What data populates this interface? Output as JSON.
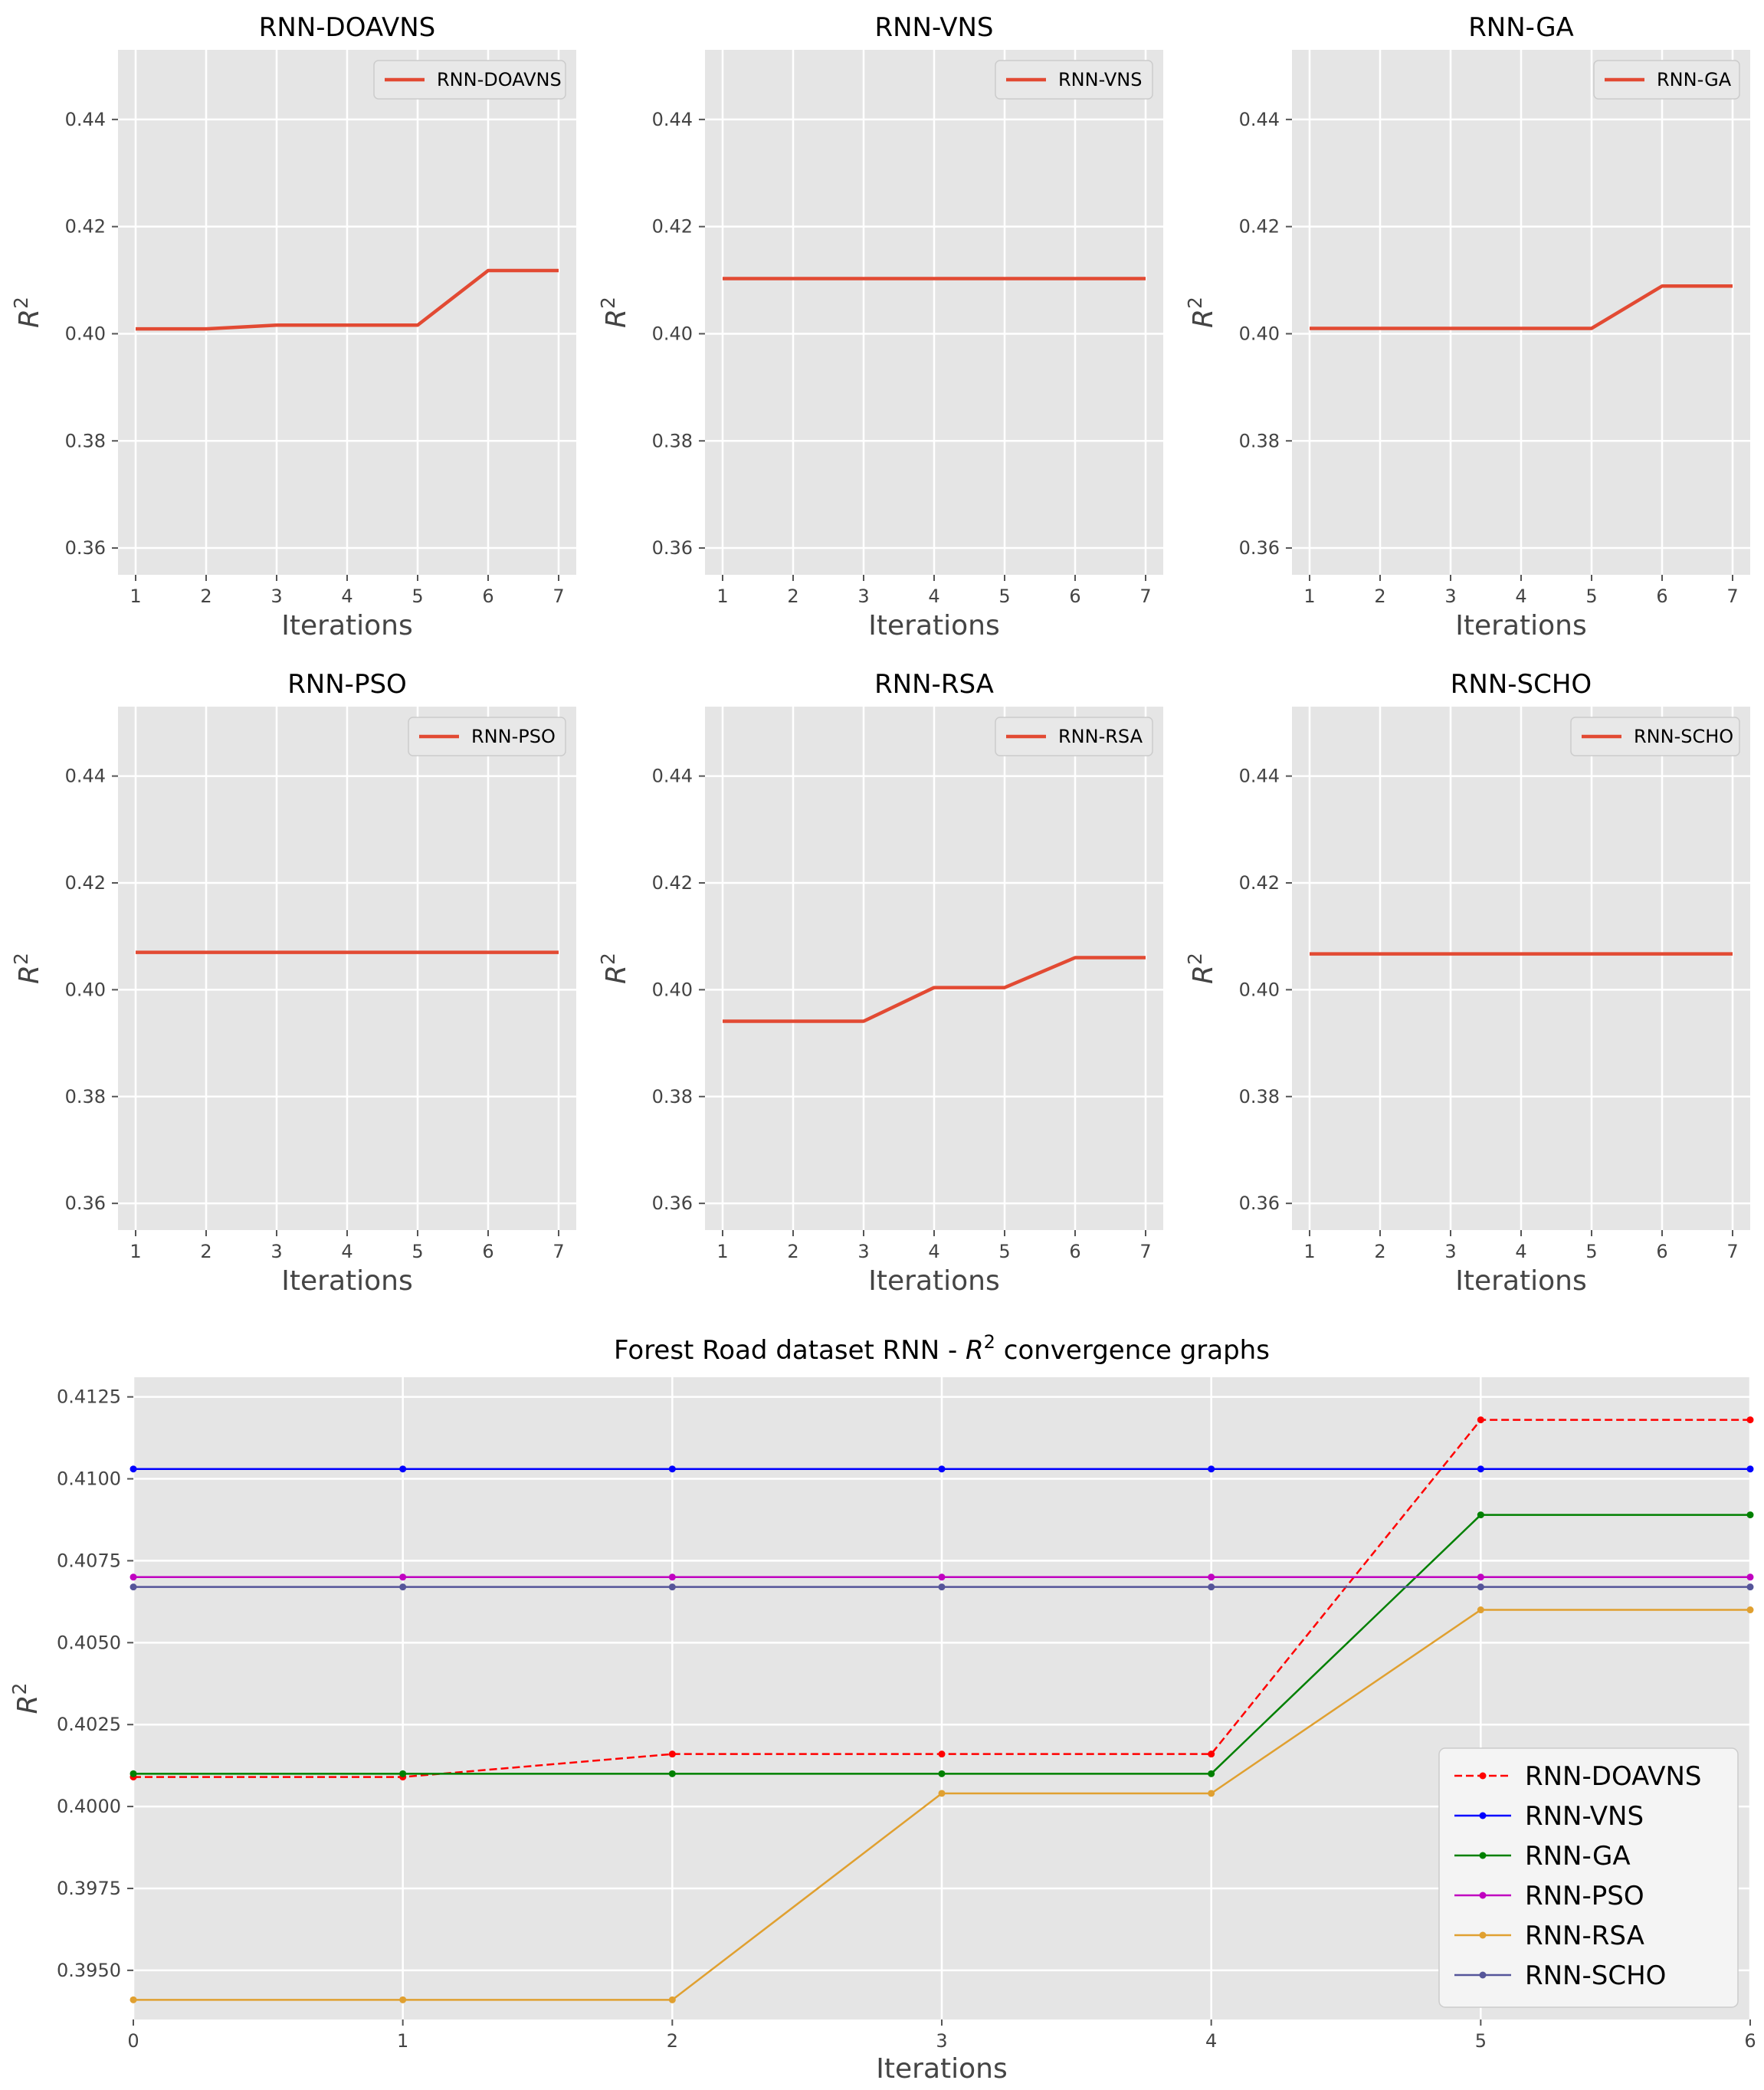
{
  "chart_data": {
    "type": "line",
    "subplots": [
      {
        "title": "RNN-DOAVNS",
        "legend": "RNN-DOAVNS",
        "xlabel": "Iterations",
        "ylabel": "R",
        "ylabel_sup": "2",
        "x": [
          1,
          2,
          3,
          4,
          5,
          6,
          7
        ],
        "values": [
          0.4009,
          0.4009,
          0.4016,
          0.4016,
          0.4016,
          0.4118,
          0.4118
        ],
        "xlim": [
          0.75,
          7.25
        ],
        "ylim": [
          0.355,
          0.453
        ],
        "xticks": [
          "1",
          "2",
          "3",
          "4",
          "5",
          "6",
          "7"
        ],
        "yticks": [
          "0.36",
          "0.38",
          "0.40",
          "0.42",
          "0.44"
        ],
        "ytick_values": [
          0.36,
          0.38,
          0.4,
          0.42,
          0.44
        ]
      },
      {
        "title": "RNN-VNS",
        "legend": "RNN-VNS",
        "xlabel": "Iterations",
        "ylabel": "R",
        "ylabel_sup": "2",
        "x": [
          1,
          2,
          3,
          4,
          5,
          6,
          7
        ],
        "values": [
          0.4103,
          0.4103,
          0.4103,
          0.4103,
          0.4103,
          0.4103,
          0.4103
        ],
        "xlim": [
          0.75,
          7.25
        ],
        "ylim": [
          0.355,
          0.453
        ],
        "xticks": [
          "1",
          "2",
          "3",
          "4",
          "5",
          "6",
          "7"
        ],
        "yticks": [
          "0.36",
          "0.38",
          "0.40",
          "0.42",
          "0.44"
        ],
        "ytick_values": [
          0.36,
          0.38,
          0.4,
          0.42,
          0.44
        ]
      },
      {
        "title": "RNN-GA",
        "legend": "RNN-GA",
        "xlabel": "Iterations",
        "ylabel": "R",
        "ylabel_sup": "2",
        "x": [
          1,
          2,
          3,
          4,
          5,
          6,
          7
        ],
        "values": [
          0.401,
          0.401,
          0.401,
          0.401,
          0.401,
          0.4089,
          0.4089
        ],
        "xlim": [
          0.75,
          7.25
        ],
        "ylim": [
          0.355,
          0.453
        ],
        "xticks": [
          "1",
          "2",
          "3",
          "4",
          "5",
          "6",
          "7"
        ],
        "yticks": [
          "0.36",
          "0.38",
          "0.40",
          "0.42",
          "0.44"
        ],
        "ytick_values": [
          0.36,
          0.38,
          0.4,
          0.42,
          0.44
        ]
      },
      {
        "title": "RNN-PSO",
        "legend": "RNN-PSO",
        "xlabel": "Iterations",
        "ylabel": "R",
        "ylabel_sup": "2",
        "x": [
          1,
          2,
          3,
          4,
          5,
          6,
          7
        ],
        "values": [
          0.407,
          0.407,
          0.407,
          0.407,
          0.407,
          0.407,
          0.407
        ],
        "xlim": [
          0.75,
          7.25
        ],
        "ylim": [
          0.355,
          0.453
        ],
        "xticks": [
          "1",
          "2",
          "3",
          "4",
          "5",
          "6",
          "7"
        ],
        "yticks": [
          "0.36",
          "0.38",
          "0.40",
          "0.42",
          "0.44"
        ],
        "ytick_values": [
          0.36,
          0.38,
          0.4,
          0.42,
          0.44
        ]
      },
      {
        "title": "RNN-RSA",
        "legend": "RNN-RSA",
        "xlabel": "Iterations",
        "ylabel": "R",
        "ylabel_sup": "2",
        "x": [
          1,
          2,
          3,
          4,
          5,
          6,
          7
        ],
        "values": [
          0.3941,
          0.3941,
          0.3941,
          0.4004,
          0.4004,
          0.406,
          0.406
        ],
        "xlim": [
          0.75,
          7.25
        ],
        "ylim": [
          0.355,
          0.453
        ],
        "xticks": [
          "1",
          "2",
          "3",
          "4",
          "5",
          "6",
          "7"
        ],
        "yticks": [
          "0.36",
          "0.38",
          "0.40",
          "0.42",
          "0.44"
        ],
        "ytick_values": [
          0.36,
          0.38,
          0.4,
          0.42,
          0.44
        ]
      },
      {
        "title": "RNN-SCHO",
        "legend": "RNN-SCHO",
        "xlabel": "Iterations",
        "ylabel": "R",
        "ylabel_sup": "2",
        "x": [
          1,
          2,
          3,
          4,
          5,
          6,
          7
        ],
        "values": [
          0.4067,
          0.4067,
          0.4067,
          0.4067,
          0.4067,
          0.4067,
          0.4067
        ],
        "xlim": [
          0.75,
          7.25
        ],
        "ylim": [
          0.355,
          0.453
        ],
        "xticks": [
          "1",
          "2",
          "3",
          "4",
          "5",
          "6",
          "7"
        ],
        "yticks": [
          "0.36",
          "0.38",
          "0.40",
          "0.42",
          "0.44"
        ],
        "ytick_values": [
          0.36,
          0.38,
          0.4,
          0.42,
          0.44
        ]
      }
    ],
    "combined": {
      "title_prefix": "Forest Road dataset RNN -  ",
      "title_r": "R",
      "title_sup": "2",
      "title_suffix": " convergence graphs",
      "xlabel": "Iterations",
      "ylabel": "R",
      "ylabel_sup": "2",
      "x": [
        0,
        1,
        2,
        3,
        4,
        5,
        6
      ],
      "xlim": [
        0,
        6
      ],
      "ylim": [
        0.3935,
        0.4131
      ],
      "xticks": [
        "0",
        "1",
        "2",
        "3",
        "4",
        "5",
        "6"
      ],
      "yticks": [
        "0.3950",
        "0.3975",
        "0.4000",
        "0.4025",
        "0.4050",
        "0.4075",
        "0.4100",
        "0.4125"
      ],
      "ytick_values": [
        0.395,
        0.3975,
        0.4,
        0.4025,
        0.405,
        0.4075,
        0.41,
        0.4125
      ],
      "legend_position": "lower-right",
      "series": [
        {
          "name": "RNN-DOAVNS",
          "color": "#ff0000",
          "dashed": true,
          "values": [
            0.4009,
            0.4009,
            0.4016,
            0.4016,
            0.4016,
            0.4118,
            0.4118
          ]
        },
        {
          "name": "RNN-VNS",
          "color": "#0000ff",
          "dashed": false,
          "values": [
            0.4103,
            0.4103,
            0.4103,
            0.4103,
            0.4103,
            0.4103,
            0.4103
          ]
        },
        {
          "name": "RNN-GA",
          "color": "#008000",
          "dashed": false,
          "values": [
            0.401,
            0.401,
            0.401,
            0.401,
            0.401,
            0.4089,
            0.4089
          ]
        },
        {
          "name": "RNN-PSO",
          "color": "#c000c0",
          "dashed": false,
          "values": [
            0.407,
            0.407,
            0.407,
            0.407,
            0.407,
            0.407,
            0.407
          ]
        },
        {
          "name": "RNN-RSA",
          "color": "#e0a030",
          "dashed": false,
          "values": [
            0.3941,
            0.3941,
            0.3941,
            0.4004,
            0.4004,
            0.406,
            0.406
          ]
        },
        {
          "name": "RNN-SCHO",
          "color": "#555599",
          "dashed": false,
          "values": [
            0.4067,
            0.4067,
            0.4067,
            0.4067,
            0.4067,
            0.4067,
            0.4067
          ]
        }
      ]
    },
    "colors": {
      "panel_bg": "#e5e5e5",
      "grid": "#ffffff",
      "subplot_line": "#e24a33"
    }
  }
}
